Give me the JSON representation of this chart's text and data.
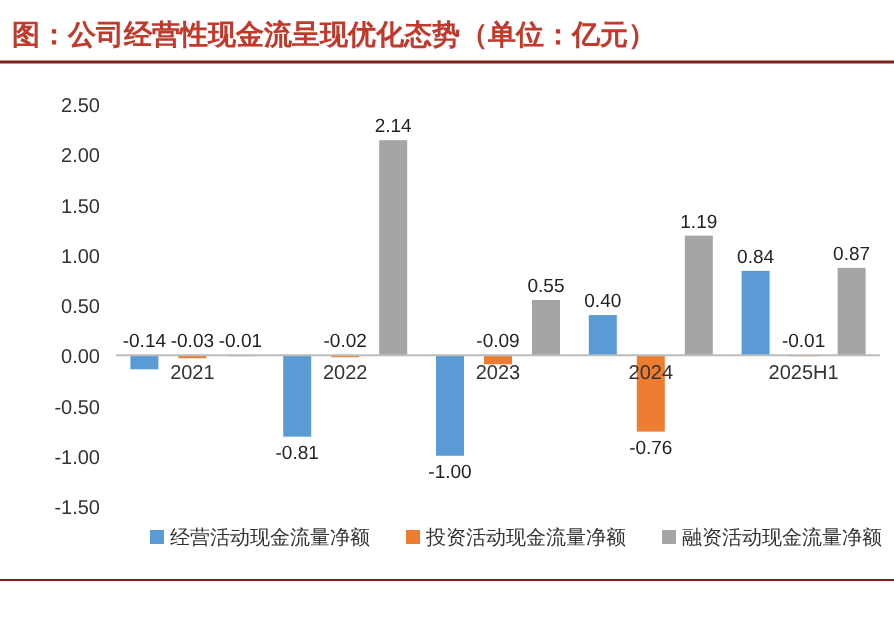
{
  "chart_data": {
    "type": "bar",
    "title": "图：公司经营性现金流呈现优化态势（单位：亿元）",
    "categories": [
      "2021",
      "2022",
      "2023",
      "2024",
      "2025H1"
    ],
    "series": [
      {
        "name": "经营活动现金流量净额",
        "color": "#5b9bd5",
        "values": [
          -0.14,
          -0.81,
          -1.0,
          0.4,
          0.84
        ],
        "value_labels": [
          "-0.14",
          "-0.81",
          "-1.00",
          "0.40",
          "0.84"
        ]
      },
      {
        "name": "投资活动现金流量净额",
        "color": "#ed7d31",
        "values": [
          -0.03,
          -0.02,
          -0.09,
          -0.76,
          -0.01
        ],
        "value_labels": [
          "-0.03",
          "-0.02",
          "-0.09",
          "-0.76",
          "-0.01"
        ]
      },
      {
        "name": "融资活动现金流量净额",
        "color": "#a5a5a5",
        "values": [
          -0.01,
          2.14,
          0.55,
          1.19,
          0.87
        ],
        "value_labels": [
          "-0.01",
          "2.14",
          "0.55",
          "1.19",
          "0.87"
        ]
      }
    ],
    "ylim": [
      -1.5,
      2.5
    ],
    "yticks": [
      {
        "value": -1.5,
        "label": "-1.50"
      },
      {
        "value": -1.0,
        "label": "-1.00"
      },
      {
        "value": -0.5,
        "label": "-0.50"
      },
      {
        "value": 0,
        "label": "0.00"
      },
      {
        "value": 0.5,
        "label": "0.50"
      },
      {
        "value": 1.0,
        "label": "1.00"
      },
      {
        "value": 1.5,
        "label": "1.50"
      },
      {
        "value": 2.0,
        "label": "2.00"
      },
      {
        "value": 2.5,
        "label": "2.50"
      }
    ],
    "grid": false,
    "legend": "bottom"
  }
}
